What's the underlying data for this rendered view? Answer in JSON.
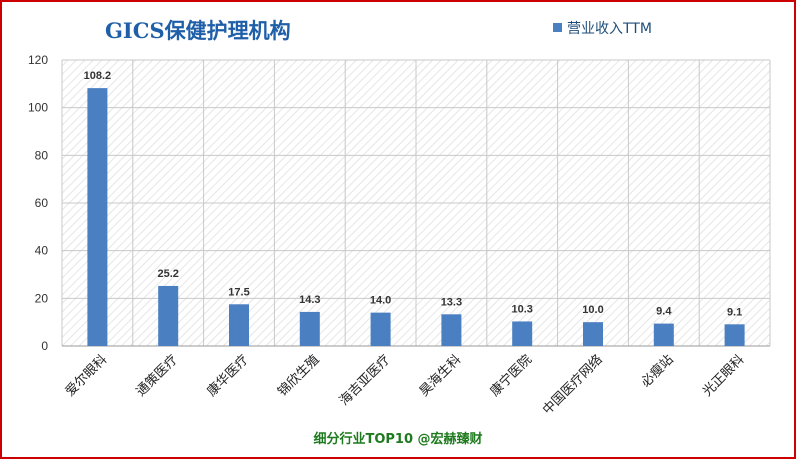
{
  "chart_data": {
    "type": "bar",
    "title": "GICS保健护理机构",
    "categories": [
      "爱尔眼科",
      "通策医疗",
      "康华医疗",
      "锦欣生殖",
      "海吉亚医疗",
      "昊海生科",
      "康宁医院",
      "中国医疗网络",
      "必瘦站",
      "光正眼科"
    ],
    "series": [
      {
        "name": "营业收入TTM",
        "values": [
          108.2,
          25.2,
          17.5,
          14.3,
          14.0,
          13.3,
          10.3,
          10.0,
          9.4,
          9.1
        ],
        "color": "#4a7fc1"
      }
    ],
    "data_labels": [
      "108.2",
      "25.2",
      "17.5",
      "14.3",
      "14.0",
      "13.3",
      "10.3",
      "10.0",
      "9.4",
      "9.1"
    ],
    "ylim": [
      0,
      120
    ],
    "yticks": [
      0,
      20,
      40,
      60,
      80,
      100,
      120
    ],
    "xlabel": "",
    "ylabel": "",
    "grid": true,
    "legend_position": "top-right"
  },
  "footer": "细分行业TOP10 @宏赫臻财",
  "colors": {
    "frame": "#cc0000",
    "title": "#1f5fa8",
    "footer": "#1e7a1e",
    "bar": "#4a7fc1"
  }
}
